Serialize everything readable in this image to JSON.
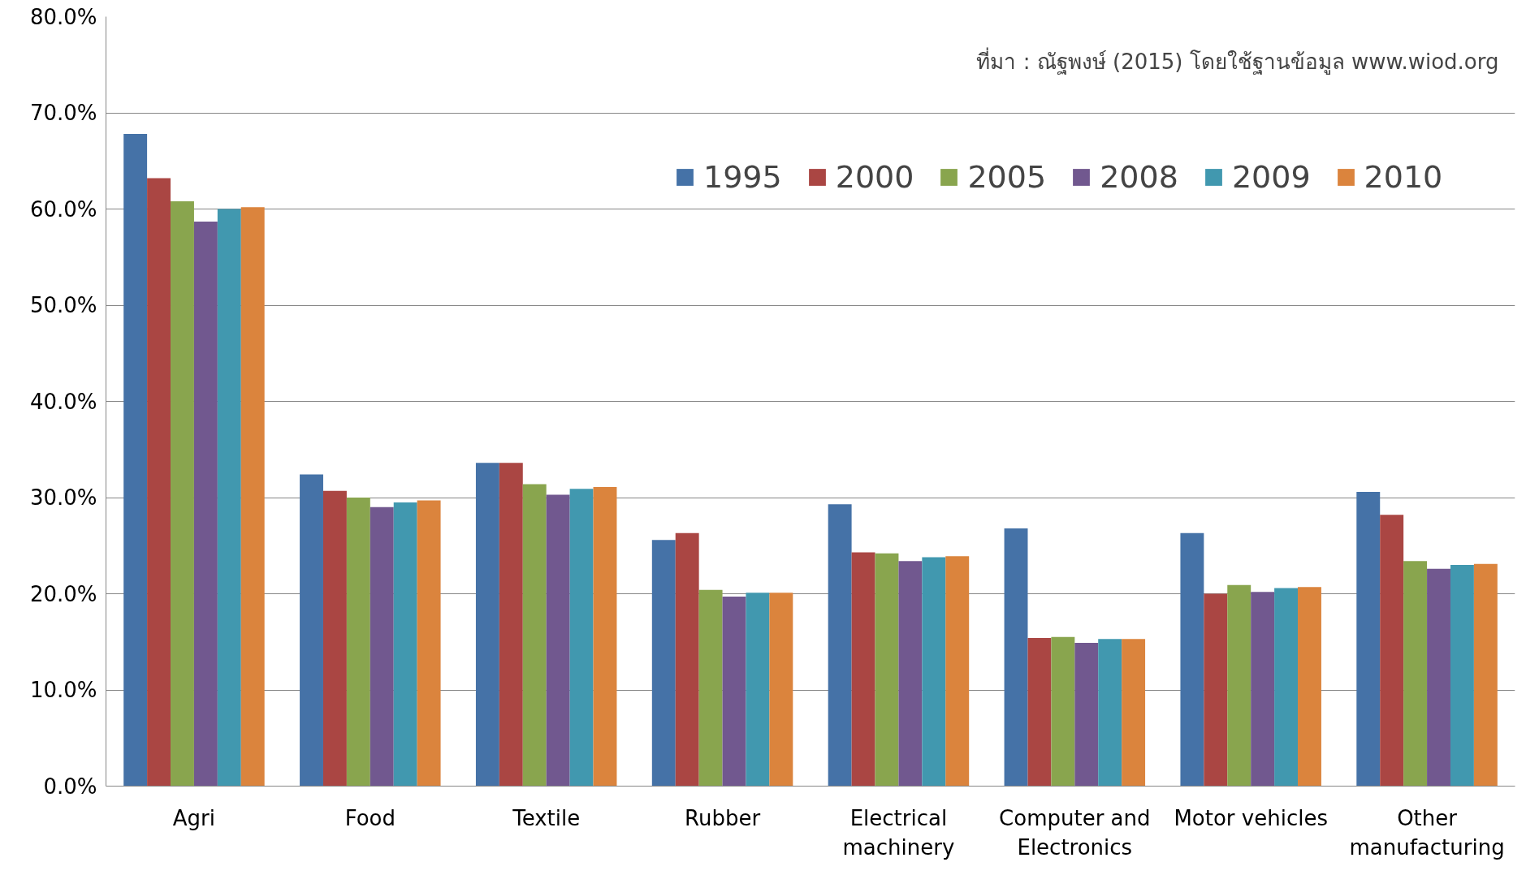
{
  "chart_data": {
    "type": "bar",
    "categories": [
      "Agri",
      "Food",
      "Textile",
      "Rubber",
      "Electrical\nmachinery",
      "Computer and\nElectronics",
      "Motor vehicles",
      "Other\nmanufacturing"
    ],
    "series": [
      {
        "name": "1995",
        "color": "#4572a7",
        "values": [
          67.8,
          32.4,
          33.6,
          25.6,
          29.3,
          26.8,
          26.3,
          30.6
        ]
      },
      {
        "name": "2000",
        "color": "#aa4643",
        "values": [
          63.2,
          30.7,
          33.6,
          26.3,
          24.3,
          15.4,
          20.0,
          28.2
        ]
      },
      {
        "name": "2005",
        "color": "#89a54e",
        "values": [
          60.8,
          30.0,
          31.4,
          20.4,
          24.2,
          15.5,
          20.9,
          23.4
        ]
      },
      {
        "name": "2008",
        "color": "#71588f",
        "values": [
          58.7,
          29.0,
          30.3,
          19.7,
          23.4,
          14.9,
          20.2,
          22.6
        ]
      },
      {
        "name": "2009",
        "color": "#4198af",
        "values": [
          60.0,
          29.5,
          30.9,
          20.1,
          23.8,
          15.3,
          20.6,
          23.0
        ]
      },
      {
        "name": "2010",
        "color": "#db843d",
        "values": [
          60.2,
          29.7,
          31.1,
          20.1,
          23.9,
          15.3,
          20.7,
          23.1
        ]
      }
    ],
    "ylim": [
      0,
      80
    ],
    "yticks": [
      {
        "value": 0,
        "label": "0.0%"
      },
      {
        "value": 10,
        "label": "10.0%"
      },
      {
        "value": 20,
        "label": "20.0%"
      },
      {
        "value": 30,
        "label": "30.0%"
      },
      {
        "value": 40,
        "label": "40.0%"
      },
      {
        "value": 50,
        "label": "50.0%"
      },
      {
        "value": 60,
        "label": "60.0%"
      },
      {
        "value": 70,
        "label": "70.0%"
      },
      {
        "value": 80,
        "label": "80.0%"
      }
    ],
    "grid": "y",
    "legend": "top right",
    "annotations": [
      "ที่มา : ณัฐพงษ์ (2015) โดยใช้ฐานข้อมูล www.wiod.org"
    ]
  }
}
